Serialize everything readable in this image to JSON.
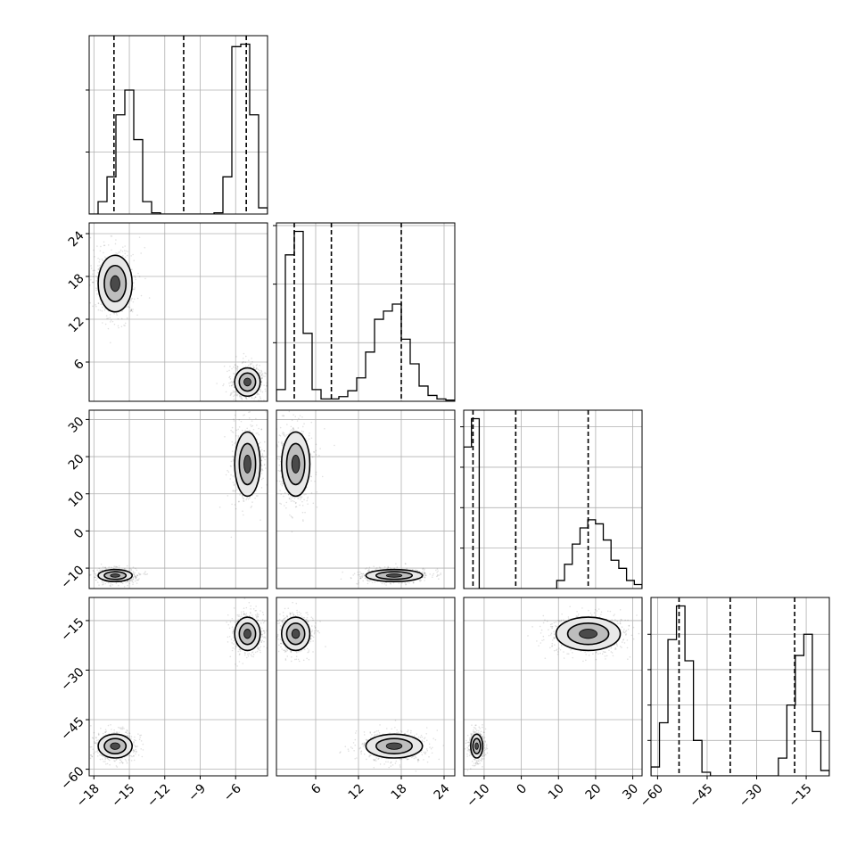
{
  "chart_data": {
    "type": "corner",
    "title": "",
    "parameters": [
      {
        "ticks": [
          -18,
          -15,
          -12,
          -9,
          -6
        ],
        "tick_labels": [
          "−18",
          "−15",
          "−12",
          "−9",
          "−6"
        ],
        "range": [
          -18.4,
          -3.3
        ]
      },
      {
        "ticks": [
          6,
          12,
          18,
          24
        ],
        "tick_labels": [
          "6",
          "12",
          "18",
          "24"
        ],
        "range": [
          0.5,
          25.5
        ]
      },
      {
        "ticks": [
          -10,
          0,
          10,
          20,
          30
        ],
        "tick_labels": [
          "−10",
          "0",
          "10",
          "20",
          "30"
        ],
        "range": [
          -15.5,
          32.5
        ]
      },
      {
        "ticks": [
          -60,
          -45,
          -30,
          -15
        ],
        "tick_labels": [
          "−60",
          "−45",
          "−30",
          "−15"
        ],
        "range": [
          -62,
          -8
        ]
      }
    ],
    "histograms": [
      {
        "param": 0,
        "quantiles": [
          -16.3,
          -10.4,
          -5.1
        ],
        "heights": [
          0,
          0.1,
          0.3,
          0.8,
          1.0,
          0.6,
          0.1,
          0.01,
          0,
          0,
          0,
          0,
          0,
          0,
          0.01,
          0.3,
          1.35,
          1.37,
          0.8,
          0.05
        ],
        "hist_axis_ticks": [
          0.5,
          1.0
        ]
      },
      {
        "param": 1,
        "quantiles": [
          3.0,
          8.2,
          18.0
        ],
        "heights": [
          0.1,
          1.25,
          1.45,
          0.58,
          0.1,
          0.02,
          0.02,
          0.04,
          0.09,
          0.2,
          0.42,
          0.7,
          0.77,
          0.83,
          0.53,
          0.32,
          0.13,
          0.05,
          0.02,
          0.01
        ],
        "hist_axis_ticks": [
          0.5,
          1.0,
          1.5
        ]
      },
      {
        "param": 2,
        "quantiles": [
          -13.0,
          -1.5,
          18.0
        ],
        "heights": [
          0.35,
          0.42,
          0,
          0,
          0,
          0,
          0,
          0,
          0,
          0,
          0,
          0,
          0.02,
          0.06,
          0.11,
          0.15,
          0.17,
          0.16,
          0.12,
          0.07,
          0.05,
          0.02,
          0.01
        ],
        "hist_axis_ticks": [
          0.1,
          0.2,
          0.3,
          0.4
        ]
      },
      {
        "param": 3,
        "quantiles": [
          -53.5,
          -38.0,
          -18.5
        ],
        "heights": [
          0.005,
          0.03,
          0.077,
          0.096,
          0.065,
          0.02,
          0.002,
          0,
          0,
          0,
          0,
          0,
          0,
          0,
          0,
          0.01,
          0.04,
          0.068,
          0.08,
          0.025,
          0.003
        ],
        "hist_axis_ticks": [
          0.02,
          0.04,
          0.06,
          0.08
        ]
      }
    ],
    "modes": [
      {
        "weight": 0.5,
        "mean": [
          -16.2,
          17.0,
          -12.0,
          -53.0
        ],
        "sd": [
          0.8,
          2.2,
          0.9,
          2.0
        ]
      },
      {
        "weight": 0.5,
        "mean": [
          -5.0,
          3.2,
          18.0,
          -19.0
        ],
        "sd": [
          0.6,
          1.1,
          4.8,
          2.8
        ]
      }
    ],
    "grid": true,
    "xlabel": "",
    "ylabel": ""
  }
}
